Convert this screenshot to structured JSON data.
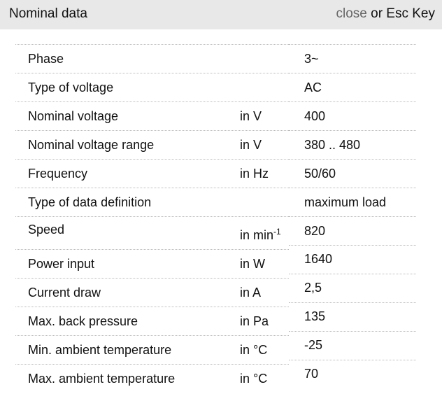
{
  "header": {
    "title": "Nominal data",
    "close_label": "close",
    "close_suffix": " or Esc Key"
  },
  "rows": [
    {
      "label": "Phase",
      "unit": "",
      "value": "3~"
    },
    {
      "label": "Type of voltage",
      "unit": "",
      "value": "AC"
    },
    {
      "label": "Nominal voltage",
      "unit": "in V",
      "value": "400"
    },
    {
      "label": "Nominal voltage range",
      "unit": "in V",
      "value": "380 .. 480"
    },
    {
      "label": "Frequency",
      "unit": "in Hz",
      "value": "50/60"
    },
    {
      "label": "Type of data definition",
      "unit": "",
      "value": "maximum load"
    },
    {
      "label": "Speed",
      "unit": "in min",
      "unit_sup": "-1",
      "value": "820"
    },
    {
      "label": "Power input",
      "unit": "in W",
      "value": "1640"
    },
    {
      "label": "Current draw",
      "unit": "in A",
      "value": "2,5"
    },
    {
      "label": "Max. back pressure",
      "unit": "in Pa",
      "value": "135"
    },
    {
      "label": "Min. ambient temperature",
      "unit": "in °C",
      "value": "-25"
    },
    {
      "label": "Max. ambient temperature",
      "unit": "in °C",
      "value": "70"
    }
  ]
}
